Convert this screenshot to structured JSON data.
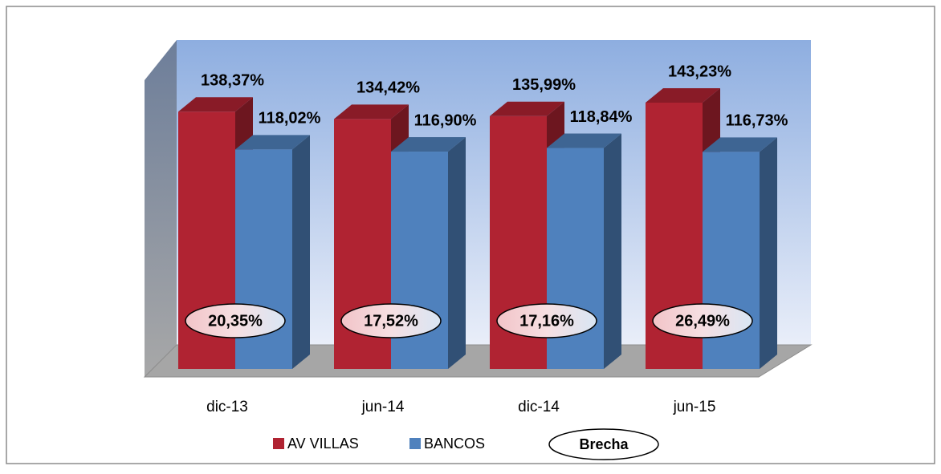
{
  "chart_data": {
    "type": "bar3d",
    "categories": [
      "dic-13",
      "jun-14",
      "dic-14",
      "jun-15"
    ],
    "series": [
      {
        "name": "AV VILLAS",
        "color": "#b02332",
        "values": [
          138.37,
          134.42,
          135.99,
          143.23
        ],
        "value_labels": [
          "138,37%",
          "134,42%",
          "135,99%",
          "143,23%"
        ]
      },
      {
        "name": "BANCOS",
        "color": "#4f81bd",
        "values": [
          118.02,
          116.9,
          118.84,
          116.73
        ],
        "value_labels": [
          "118,02%",
          "116,90%",
          "118,84%",
          "116,73%"
        ]
      }
    ],
    "gap": {
      "name": "Brecha",
      "values": [
        20.35,
        17.52,
        17.16,
        26.49
      ],
      "value_labels": [
        "20,35%",
        "17,52%",
        "17,16%",
        "26,49%"
      ]
    }
  }
}
